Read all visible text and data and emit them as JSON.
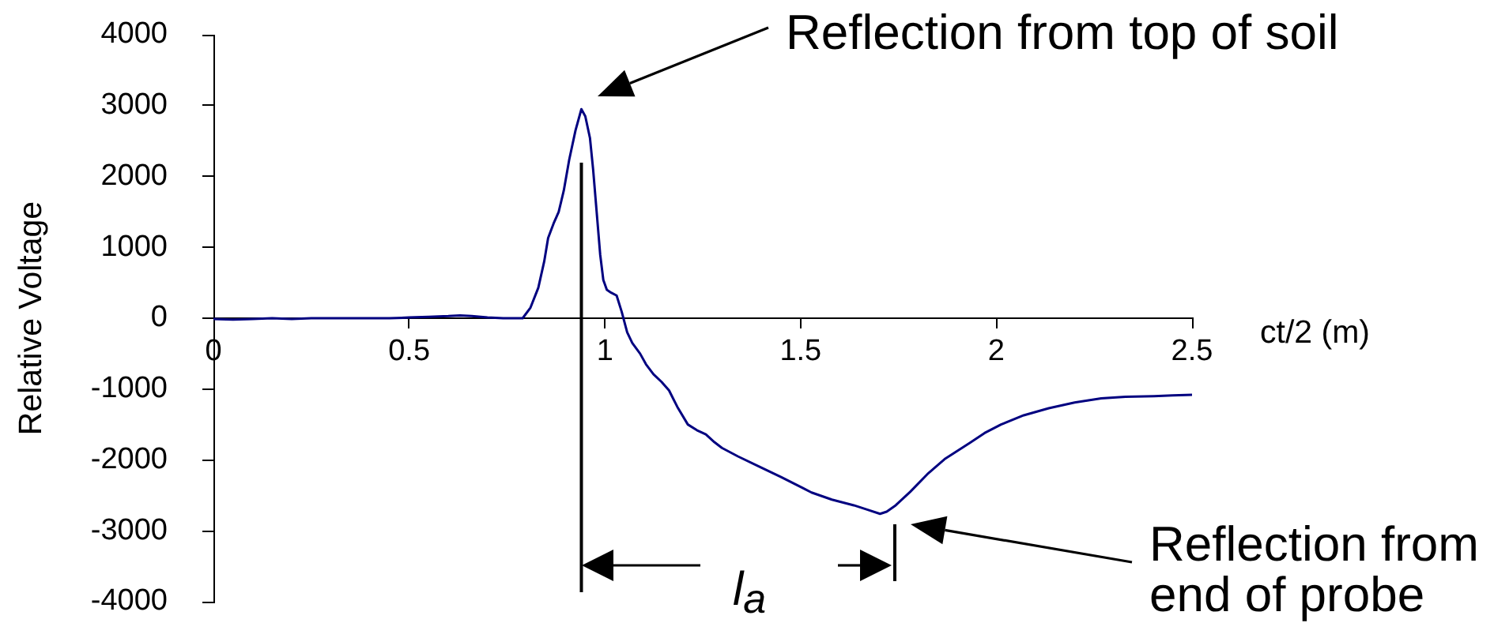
{
  "chart_data": {
    "type": "line",
    "xlabel": "ct/2 (m)",
    "ylabel": "Relative Voltage",
    "x": [
      0,
      0.05,
      0.1,
      0.15,
      0.2,
      0.25,
      0.3,
      0.35,
      0.4,
      0.45,
      0.5,
      0.55,
      0.6,
      0.63,
      0.66,
      0.7,
      0.74,
      0.79,
      0.81,
      0.83,
      0.845,
      0.855,
      0.87,
      0.882,
      0.895,
      0.909,
      0.925,
      0.94,
      0.95,
      0.962,
      0.97,
      0.979,
      0.988,
      0.996,
      1.005,
      1.016,
      1.03,
      1.043,
      1.057,
      1.07,
      1.09,
      1.105,
      1.124,
      1.145,
      1.164,
      1.185,
      1.212,
      1.235,
      1.258,
      1.28,
      1.299,
      1.34,
      1.393,
      1.45,
      1.5,
      1.528,
      1.58,
      1.636,
      1.67,
      1.703,
      1.72,
      1.743,
      1.78,
      1.824,
      1.87,
      1.932,
      1.97,
      2.012,
      2.07,
      2.134,
      2.2,
      2.268,
      2.33,
      2.403,
      2.45,
      2.5
    ],
    "series": [
      {
        "color": "#000080",
        "values": [
          -10,
          -20,
          -10,
          0,
          -10,
          0,
          0,
          0,
          0,
          0,
          10,
          20,
          30,
          40,
          30,
          10,
          0,
          0,
          150,
          430,
          800,
          1130,
          1350,
          1500,
          1800,
          2240,
          2650,
          2950,
          2850,
          2540,
          2100,
          1500,
          900,
          540,
          400,
          360,
          320,
          90,
          -200,
          -350,
          -500,
          -650,
          -790,
          -900,
          -1020,
          -1250,
          -1500,
          -1580,
          -1640,
          -1750,
          -1830,
          -1950,
          -2090,
          -2240,
          -2380,
          -2460,
          -2560,
          -2640,
          -2700,
          -2760,
          -2730,
          -2640,
          -2450,
          -2200,
          -1980,
          -1760,
          -1620,
          -1500,
          -1370,
          -1270,
          -1190,
          -1130,
          -1110,
          -1100,
          -1090,
          -1080
        ]
      }
    ],
    "xlim": [
      0,
      2.5
    ],
    "xticks": [
      0,
      0.5,
      1,
      1.5,
      2,
      2.5
    ],
    "ylim": [
      -4000,
      4000
    ],
    "yticks": [
      -4000,
      -3000,
      -2000,
      -1000,
      0,
      1000,
      2000,
      3000,
      4000
    ],
    "ref_lines": [
      {
        "axis": "x",
        "value": 0.94,
        "color": "#000000"
      }
    ],
    "annotations": [
      "Reflection from top of soil",
      "Reflection from end of probe",
      "l$_{a}$"
    ]
  }
}
